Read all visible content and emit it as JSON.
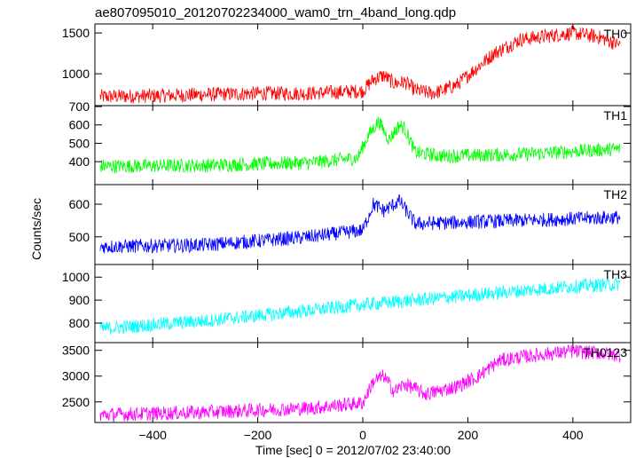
{
  "chart_data": [
    {
      "type": "line",
      "title": "ae807095010_20120702234000_wam0_trn_4band_long.qdp",
      "label": "TH0",
      "color": "#ff0000",
      "xlim": [
        -510,
        510
      ],
      "ylim": [
        610,
        1610
      ],
      "yticks": [
        1000,
        1500
      ],
      "x": [
        -500,
        -400,
        -300,
        -200,
        -100,
        0,
        20,
        40,
        60,
        80,
        100,
        130,
        150,
        180,
        200,
        250,
        300,
        350,
        400,
        450,
        490
      ],
      "values": [
        720,
        730,
        745,
        760,
        760,
        790,
        930,
        980,
        880,
        900,
        800,
        760,
        790,
        870,
        980,
        1250,
        1420,
        1460,
        1500,
        1450,
        1350
      ]
    },
    {
      "type": "line",
      "label": "TH1",
      "color": "#00ff00",
      "xlim": [
        -510,
        510
      ],
      "ylim": [
        275,
        705
      ],
      "yticks": [
        400,
        500,
        600,
        700
      ],
      "x": [
        -500,
        -300,
        -100,
        -10,
        10,
        30,
        50,
        70,
        80,
        100,
        150,
        300,
        490
      ],
      "values": [
        375,
        380,
        395,
        420,
        540,
        620,
        520,
        600,
        580,
        450,
        430,
        440,
        470
      ]
    },
    {
      "type": "line",
      "label": "TH2",
      "color": "#0000ff",
      "xlim": [
        -510,
        510
      ],
      "ylim": [
        415,
        660
      ],
      "yticks": [
        500,
        600
      ],
      "x": [
        -500,
        -300,
        -100,
        0,
        20,
        40,
        70,
        100,
        200,
        490
      ],
      "values": [
        470,
        475,
        500,
        520,
        600,
        580,
        610,
        540,
        545,
        560
      ]
    },
    {
      "type": "line",
      "label": "TH3",
      "color": "#00ffff",
      "xlim": [
        -510,
        510
      ],
      "ylim": [
        715,
        1055
      ],
      "yticks": [
        800,
        900,
        1000
      ],
      "x": [
        -500,
        -300,
        -100,
        0,
        200,
        400,
        490
      ],
      "values": [
        775,
        810,
        855,
        880,
        920,
        960,
        970
      ]
    },
    {
      "type": "line",
      "label": "TH0123",
      "color": "#ff00ff",
      "xlim": [
        -510,
        510
      ],
      "ylim": [
        2100,
        3650
      ],
      "yticks": [
        2500,
        3000,
        3500
      ],
      "x": [
        -500,
        -300,
        -100,
        0,
        20,
        40,
        60,
        80,
        120,
        180,
        220,
        260,
        300,
        350,
        400,
        450,
        490
      ],
      "values": [
        2250,
        2300,
        2380,
        2480,
        2900,
        3000,
        2700,
        2850,
        2650,
        2800,
        3000,
        3300,
        3370,
        3430,
        3480,
        3450,
        3400
      ]
    }
  ],
  "axes": {
    "xlabel": "Time [sec] 0 = 2012/07/02 23:40:00",
    "ylabel": "Counts/sec",
    "xticks": [
      -400,
      -200,
      0,
      200,
      400
    ],
    "xtick_labels": [
      "−400",
      "−200",
      "0",
      "200",
      "400"
    ]
  }
}
